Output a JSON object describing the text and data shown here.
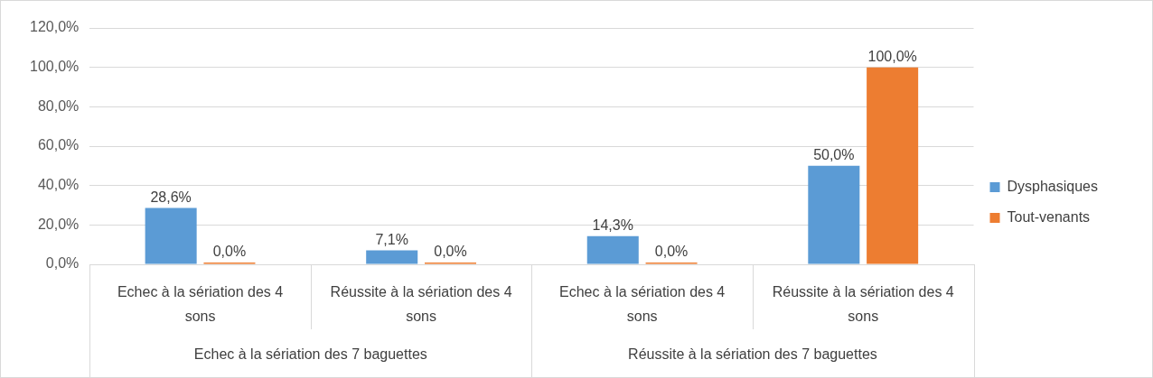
{
  "chart_data": {
    "type": "bar",
    "categories": [
      "Echec à la sériation des 4 sons",
      "Réussite à la sériation des 4 sons",
      "Echec à la sériation des 4 sons",
      "Réussite à la sériation des 4 sons"
    ],
    "series": [
      {
        "name": "Dysphasiques",
        "color": "#5b9bd5",
        "values": [
          28.6,
          7.1,
          14.3,
          50.0
        ],
        "value_labels": [
          "28,6%",
          "7,1%",
          "14,3%",
          "50,0%"
        ]
      },
      {
        "name": "Tout-venants",
        "color": "#ed7d31",
        "values": [
          0,
          0,
          0,
          100.0
        ],
        "value_labels": [
          "0,0%",
          "0,0%",
          "0,0%",
          "100,0%"
        ]
      }
    ],
    "annotations": [
      "Echec à la sériation des 7 baguettes",
      "Réussite à la sériation des 7 baguettes"
    ],
    "ylim": [
      0,
      120
    ],
    "yticks": [
      {
        "value": 0,
        "label": "0,0%"
      },
      {
        "value": 20,
        "label": "20,0%"
      },
      {
        "value": 40,
        "label": "40,0%"
      },
      {
        "value": 60,
        "label": "60,0%"
      },
      {
        "value": 80,
        "label": "80,0%"
      },
      {
        "value": 100,
        "label": "100,0%"
      },
      {
        "value": 120,
        "label": "120,0%"
      }
    ],
    "grid": "y",
    "legend": "right"
  }
}
